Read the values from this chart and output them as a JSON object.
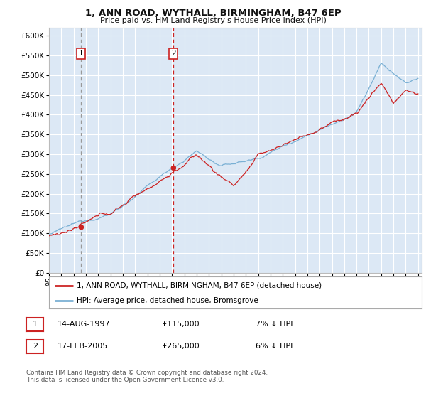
{
  "title": "1, ANN ROAD, WYTHALL, BIRMINGHAM, B47 6EP",
  "subtitle": "Price paid vs. HM Land Registry's House Price Index (HPI)",
  "ytick_vals": [
    0,
    50000,
    100000,
    150000,
    200000,
    250000,
    300000,
    350000,
    400000,
    450000,
    500000,
    550000,
    600000
  ],
  "ylim": [
    0,
    620000
  ],
  "x_start_year": 1995,
  "x_end_year": 2025,
  "legend_line1": "1, ANN ROAD, WYTHALL, BIRMINGHAM, B47 6EP (detached house)",
  "legend_line2": "HPI: Average price, detached house, Bromsgrove",
  "transaction1_date": "14-AUG-1997",
  "transaction1_price": "£115,000",
  "transaction1_hpi": "7% ↓ HPI",
  "transaction1_year": 1997.62,
  "transaction1_price_val": 115000,
  "transaction2_date": "17-FEB-2005",
  "transaction2_price": "£265,000",
  "transaction2_hpi": "6% ↓ HPI",
  "transaction2_year": 2005.12,
  "transaction2_price_val": 265000,
  "footer": "Contains HM Land Registry data © Crown copyright and database right 2024.\nThis data is licensed under the Open Government Licence v3.0.",
  "hpi_color": "#7ab0d4",
  "price_color": "#cc2222",
  "bg_color": "#dce8f5",
  "grid_color": "#ffffff",
  "vline1_color": "#888888",
  "vline2_color": "#cc2222",
  "box_color": "#cc2222"
}
